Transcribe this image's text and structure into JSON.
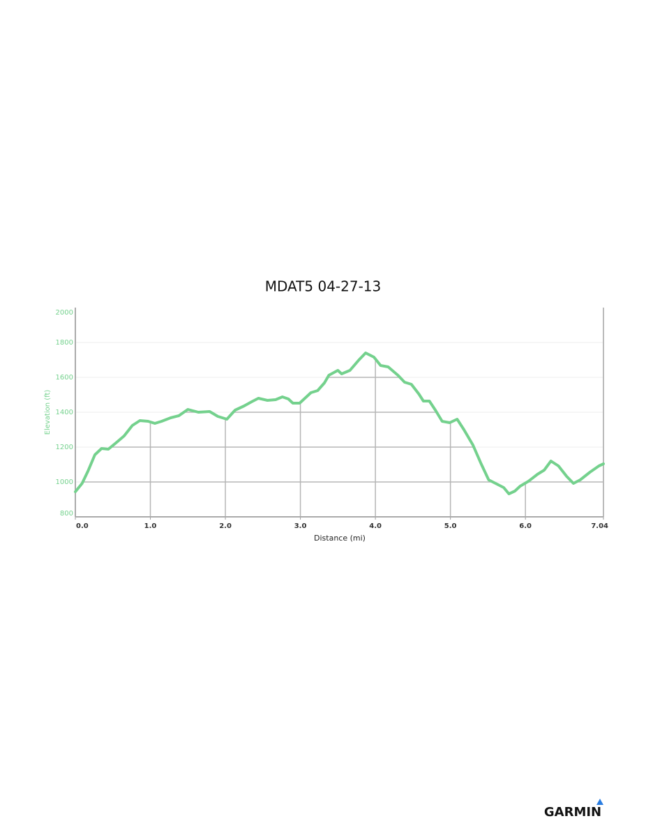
{
  "chart_data": {
    "type": "line",
    "title": "MDAT5 04-27-13",
    "x_label": "Distance (mi)",
    "y_label": "Elevation (ft)",
    "x": [
      0,
      0.09,
      0.17,
      0.26,
      0.35,
      0.44,
      0.53,
      0.65,
      0.76,
      0.86,
      0.97,
      1.06,
      1.15,
      1.27,
      1.38,
      1.5,
      1.64,
      1.79,
      1.9,
      2.02,
      2.13,
      2.25,
      2.35,
      2.44,
      2.56,
      2.67,
      2.76,
      2.84,
      2.9,
      2.99,
      3.09,
      3.14,
      3.23,
      3.32,
      3.38,
      3.5,
      3.55,
      3.66,
      3.78,
      3.87,
      3.98,
      4.07,
      4.17,
      4.3,
      4.39,
      4.48,
      4.58,
      4.64,
      4.72,
      4.8,
      4.89,
      4.99,
      5.09,
      5.18,
      5.3,
      5.41,
      5.51,
      5.62,
      5.71,
      5.78,
      5.86,
      5.93,
      6.04,
      6.16,
      6.25,
      6.34,
      6.44,
      6.55,
      6.64,
      6.73,
      6.86,
      6.98,
      7.04
    ],
    "values": [
      944,
      992,
      1064,
      1156,
      1192,
      1188,
      1220,
      1264,
      1324,
      1352,
      1348,
      1336,
      1348,
      1368,
      1380,
      1416,
      1400,
      1404,
      1376,
      1360,
      1412,
      1436,
      1460,
      1480,
      1468,
      1472,
      1488,
      1476,
      1452,
      1452,
      1492,
      1512,
      1524,
      1568,
      1612,
      1640,
      1620,
      1640,
      1700,
      1740,
      1716,
      1668,
      1660,
      1612,
      1572,
      1560,
      1504,
      1464,
      1464,
      1412,
      1348,
      1340,
      1360,
      1300,
      1212,
      1104,
      1012,
      988,
      968,
      932,
      948,
      976,
      1004,
      1044,
      1068,
      1120,
      1092,
      1032,
      992,
      1012,
      1056,
      1092,
      1104
    ],
    "color": "#74d18d",
    "xlim": [
      0,
      7.04
    ],
    "xticks": [
      {
        "value": 0,
        "label": "0.0"
      },
      {
        "value": 1,
        "label": "1.0"
      },
      {
        "value": 2,
        "label": "2.0"
      },
      {
        "value": 3,
        "label": "3.0"
      },
      {
        "value": 4,
        "label": "4.0"
      },
      {
        "value": 5,
        "label": "5.0"
      },
      {
        "value": 6,
        "label": "6.0"
      },
      7.04
    ],
    "ylim": [
      800,
      2000
    ],
    "yticks": [
      800,
      1000,
      1200,
      1400,
      1600,
      1800,
      2000
    ],
    "grid": true
  },
  "brand": "GARMIN"
}
